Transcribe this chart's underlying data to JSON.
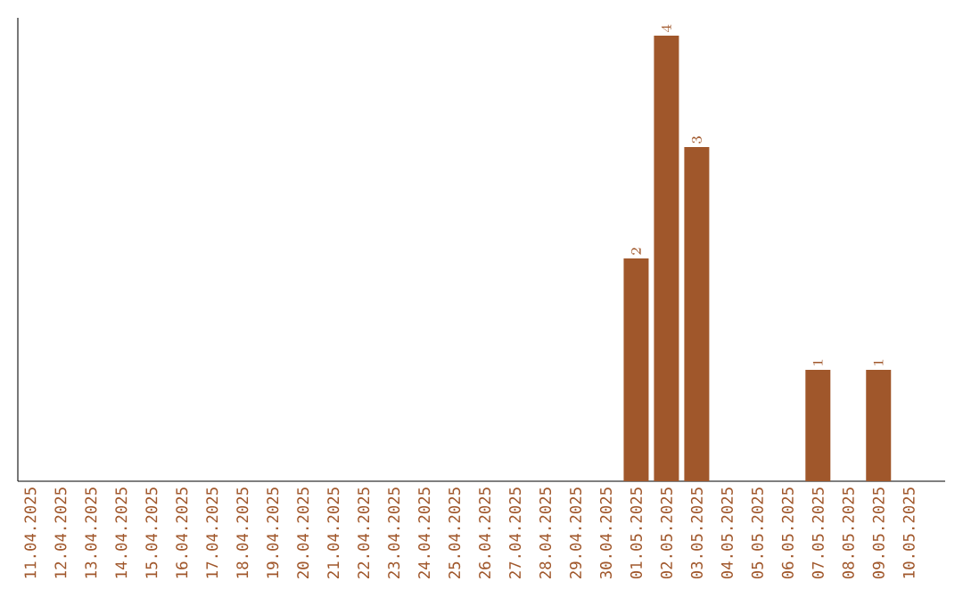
{
  "chart_data": {
    "type": "bar",
    "categories": [
      "11.04.2025",
      "12.04.2025",
      "13.04.2025",
      "14.04.2025",
      "15.04.2025",
      "16.04.2025",
      "17.04.2025",
      "18.04.2025",
      "19.04.2025",
      "20.04.2025",
      "21.04.2025",
      "22.04.2025",
      "23.04.2025",
      "24.04.2025",
      "25.04.2025",
      "26.04.2025",
      "27.04.2025",
      "28.04.2025",
      "29.04.2025",
      "30.04.2025",
      "01.05.2025",
      "02.05.2025",
      "03.05.2025",
      "04.05.2025",
      "05.05.2025",
      "06.05.2025",
      "07.05.2025",
      "08.05.2025",
      "09.05.2025",
      "10.05.2025"
    ],
    "values": [
      null,
      null,
      null,
      null,
      null,
      null,
      null,
      null,
      null,
      null,
      null,
      null,
      null,
      null,
      null,
      null,
      null,
      null,
      null,
      null,
      2,
      4,
      3,
      null,
      null,
      null,
      1,
      null,
      1,
      null
    ],
    "data_labels": true,
    "color": "#a0572b",
    "tick_labels": "x"
  }
}
